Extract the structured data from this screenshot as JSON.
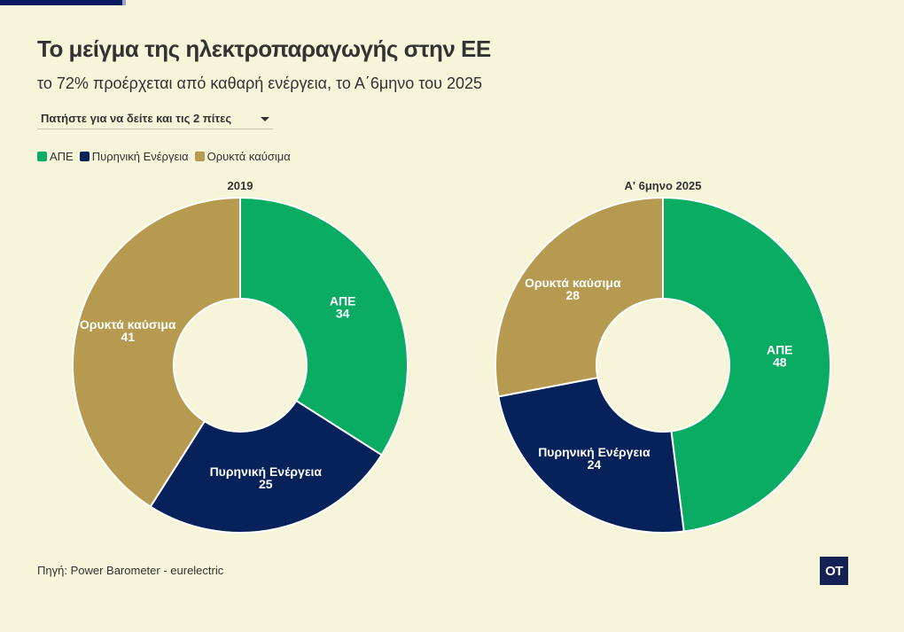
{
  "title": "Το μείγμα της ηλεκτροπαραγωγής στην ΕΕ",
  "subtitle": "το 72% προέρχεται από καθαρή ενέργεια, το Α΄6μηνο του 2025",
  "dropdown": {
    "label": "Πατήστε για να δείτε και τις 2 πίτες"
  },
  "legend": [
    {
      "label": "ΑΠΕ",
      "color": "#0aab63"
    },
    {
      "label": "Πυρηνική Ενέργεια",
      "color": "#07215b"
    },
    {
      "label": "Ορυκτά καύσιμα",
      "color": "#b59a50"
    }
  ],
  "chart_data": [
    {
      "type": "pie",
      "variant": "donut",
      "title": "2019",
      "series": [
        {
          "name": "ΑΠΕ",
          "value": 34,
          "color": "#0aab63"
        },
        {
          "name": "Πυρηνική Ενέργεια",
          "value": 25,
          "color": "#07215b"
        },
        {
          "name": "Ορυκτά καύσιμα",
          "value": 41,
          "color": "#b59a50"
        }
      ]
    },
    {
      "type": "pie",
      "variant": "donut",
      "title": "Α' 6μηνο 2025",
      "series": [
        {
          "name": "ΑΠΕ",
          "value": 48,
          "color": "#0aab63"
        },
        {
          "name": "Πυρηνική Ενέργεια",
          "value": 24,
          "color": "#07215b"
        },
        {
          "name": "Ορυκτά καύσιμα",
          "value": 28,
          "color": "#b59a50"
        }
      ]
    }
  ],
  "source": "Πηγή: Power Barometer - eurelectric",
  "logo": {
    "text": "OT"
  },
  "colors": {
    "background": "#f6f4d9",
    "brand": "#0b1a63"
  }
}
